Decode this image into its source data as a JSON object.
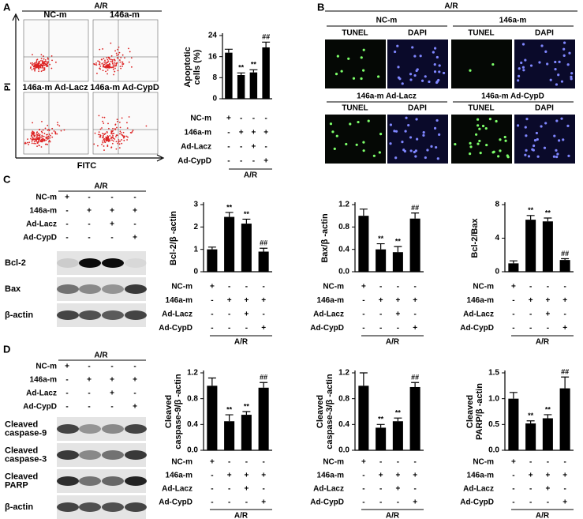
{
  "panel_labels": [
    "A",
    "B",
    "C",
    "D"
  ],
  "treatments": {
    "condition": "A/R",
    "rows": [
      {
        "name": "NC-m",
        "signs": [
          "+",
          "-",
          "-",
          "-"
        ]
      },
      {
        "name": "146a-m",
        "signs": [
          "-",
          "+",
          "+",
          "+"
        ]
      },
      {
        "name": "Ad-Lacz",
        "signs": [
          "-",
          "-",
          "+",
          "-"
        ]
      },
      {
        "name": "Ad-CypD",
        "signs": [
          "-",
          "-",
          "-",
          "+"
        ]
      }
    ]
  },
  "flow": {
    "header": "A/R",
    "titles": [
      "NC-m",
      "146a-m",
      "146a-m Ad-Lacz",
      "146a-m Ad-CypD"
    ],
    "y_label": "PI",
    "x_label": "FITC"
  },
  "tunel": {
    "header": "A/R",
    "groups": [
      "NC-m",
      "146a-m",
      "146a-m Ad-Lacz",
      "146a-m Ad-CypD"
    ],
    "channels": [
      "TUNEL",
      "DAPI"
    ]
  },
  "blots": [
    {
      "bands": [
        [
          "Bcl-2"
        ],
        [
          "Bax"
        ],
        [
          "β-actin"
        ]
      ]
    },
    {
      "bands": [
        [
          "Cleaved",
          "caspase-9"
        ],
        [
          "Cleaved",
          "caspase-3"
        ],
        [
          "Cleaved",
          "PARP"
        ],
        [
          "β-actin"
        ]
      ]
    }
  ],
  "chart_data": [
    {
      "type": "bar",
      "ylabel": [
        "Apoptotic",
        "cells (%)"
      ],
      "values": [
        17.5,
        9,
        10,
        19.5
      ],
      "errors": [
        1.3,
        0.8,
        1,
        2
      ],
      "annotations": [
        null,
        "**",
        "**",
        "##"
      ],
      "color": "#000000",
      "ylim": [
        0,
        24
      ],
      "yticks": [
        0,
        8,
        16,
        24
      ]
    },
    {
      "type": "bar",
      "ylabel": [
        "Bcl-2/β -actin"
      ],
      "values": [
        1.0,
        2.45,
        2.15,
        0.9
      ],
      "errors": [
        0.1,
        0.2,
        0.2,
        0.15
      ],
      "annotations": [
        null,
        "**",
        "**",
        "##"
      ],
      "color": "#000000",
      "ylim": [
        0,
        3
      ],
      "yticks": [
        0,
        1,
        2,
        3
      ]
    },
    {
      "type": "bar",
      "ylabel": [
        "Bax/β -actin"
      ],
      "values": [
        1.0,
        0.4,
        0.35,
        0.95
      ],
      "errors": [
        0.12,
        0.1,
        0.1,
        0.1
      ],
      "annotations": [
        null,
        "**",
        "**",
        "##"
      ],
      "color": "#000000",
      "ylim": [
        0,
        1.2
      ],
      "yticks": [
        {
          "value": 0,
          "label": "0.0"
        },
        0.4,
        0.8,
        1.2
      ]
    },
    {
      "type": "bar",
      "ylabel": [
        "Bcl-2/Bax"
      ],
      "values": [
        1.0,
        6.2,
        6.0,
        1.4
      ],
      "errors": [
        0.3,
        0.5,
        0.4,
        0.15
      ],
      "annotations": [
        null,
        "**",
        "**",
        "##"
      ],
      "color": "#000000",
      "ylim": [
        0,
        8
      ],
      "yticks": [
        0,
        4,
        8
      ]
    },
    {
      "type": "bar",
      "ylabel": [
        "Cleaved",
        "caspase-9/β -actin"
      ],
      "values": [
        1.0,
        0.45,
        0.55,
        0.97
      ],
      "errors": [
        0.12,
        0.1,
        0.05,
        0.08
      ],
      "annotations": [
        null,
        "**",
        "**",
        "##"
      ],
      "color": "#000000",
      "ylim": [
        0,
        1.2
      ],
      "yticks": [
        {
          "value": 0,
          "label": "0.0"
        },
        0.4,
        0.8,
        1.2
      ]
    },
    {
      "type": "bar",
      "ylabel": [
        "Cleaved",
        "caspase-3/β -actin"
      ],
      "values": [
        1.0,
        0.35,
        0.45,
        0.98
      ],
      "errors": [
        0.2,
        0.05,
        0.05,
        0.07
      ],
      "annotations": [
        null,
        "**",
        "**",
        "##"
      ],
      "color": "#000000",
      "ylim": [
        0,
        1.2
      ],
      "yticks": [
        {
          "value": 0,
          "label": "0.0"
        },
        0.4,
        0.8,
        1.2
      ]
    },
    {
      "type": "bar",
      "ylabel": [
        "Cleaved",
        "PARP/β -actin"
      ],
      "values": [
        1.0,
        0.52,
        0.62,
        1.2
      ],
      "errors": [
        0.12,
        0.05,
        0.07,
        0.22
      ],
      "annotations": [
        null,
        "**",
        "**",
        "##"
      ],
      "color": "#000000",
      "ylim": [
        0,
        1.5
      ],
      "yticks": [
        {
          "value": 0,
          "label": "0.0"
        },
        {
          "value": 0.5,
          "label": "0.5"
        },
        {
          "value": 1,
          "label": "1.0"
        },
        1.5
      ]
    }
  ]
}
